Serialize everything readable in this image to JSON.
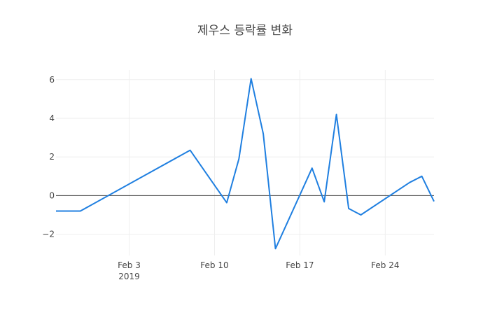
{
  "chart_data": {
    "type": "line",
    "title": "제우스 등락률 변화",
    "xlabel": "",
    "ylabel": "",
    "xlim": [
      "2019-01-28",
      "2019-02-28"
    ],
    "ylim": [
      -3.1,
      6.5
    ],
    "y_ticks": [
      -2,
      0,
      2,
      4,
      6
    ],
    "y_tick_labels": [
      "−2",
      "0",
      "2",
      "4",
      "6"
    ],
    "x_ticks": [
      {
        "date": "2019-02-03",
        "label": "Feb 3",
        "sublabel": "2019"
      },
      {
        "date": "2019-02-10",
        "label": "Feb 10",
        "sublabel": ""
      },
      {
        "date": "2019-02-17",
        "label": "Feb 17",
        "sublabel": ""
      },
      {
        "date": "2019-02-24",
        "label": "Feb 24",
        "sublabel": ""
      }
    ],
    "grid": true,
    "series": [
      {
        "color": "#1f7fe0",
        "x": [
          "2019-01-28",
          "2019-01-30",
          "2019-02-08",
          "2019-02-11",
          "2019-02-12",
          "2019-02-13",
          "2019-02-14",
          "2019-02-15",
          "2019-02-18",
          "2019-02-19",
          "2019-02-20",
          "2019-02-21",
          "2019-02-22",
          "2019-02-26",
          "2019-02-27",
          "2019-02-28"
        ],
        "y": [
          -0.8,
          -0.8,
          2.35,
          -0.37,
          1.9,
          6.05,
          3.2,
          -2.75,
          1.42,
          -0.32,
          4.2,
          -0.67,
          -1.0,
          0.68,
          1.0,
          -0.3
        ]
      }
    ]
  }
}
